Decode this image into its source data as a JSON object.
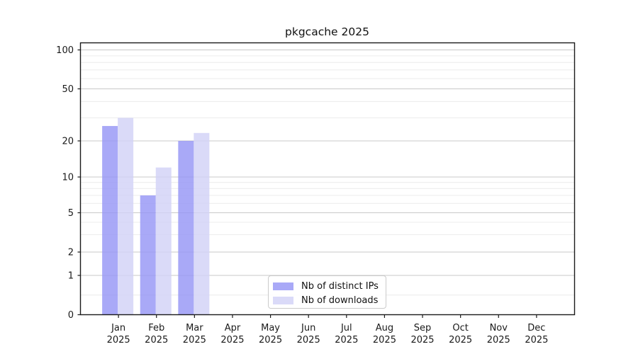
{
  "chart_data": {
    "type": "bar",
    "title": "pkgcache 2025",
    "categories": [
      "Jan",
      "Feb",
      "Mar",
      "Apr",
      "May",
      "Jun",
      "Jul",
      "Aug",
      "Sep",
      "Oct",
      "Nov",
      "Dec"
    ],
    "x_tick_year": "2025",
    "series": [
      {
        "name": "Nb of distinct IPs",
        "color": "#a9a9f7",
        "values": [
          26,
          7,
          20,
          0,
          0,
          0,
          0,
          0,
          0,
          0,
          0,
          0
        ]
      },
      {
        "name": "Nb of downloads",
        "color": "#dadaf8",
        "values": [
          30,
          12,
          23,
          0,
          0,
          0,
          0,
          0,
          0,
          0,
          0,
          0
        ]
      }
    ],
    "xlabel": "",
    "ylabel": "",
    "y_axis": {
      "tick_labels": [
        "0",
        "1",
        "2",
        "5",
        "10",
        "20",
        "50",
        "100"
      ],
      "tick_values": [
        0,
        1,
        2,
        5,
        10,
        20,
        50,
        100
      ],
      "minor_grid_values": [
        0.5,
        3,
        4,
        6,
        7,
        8,
        9,
        30,
        40,
        60,
        70,
        80,
        90
      ],
      "scale": "log-like with zero baseline",
      "ylim": [
        0,
        113
      ]
    },
    "grid": "horizontal major and minor gridlines",
    "legend": {
      "position": "lower center inside plot"
    }
  }
}
